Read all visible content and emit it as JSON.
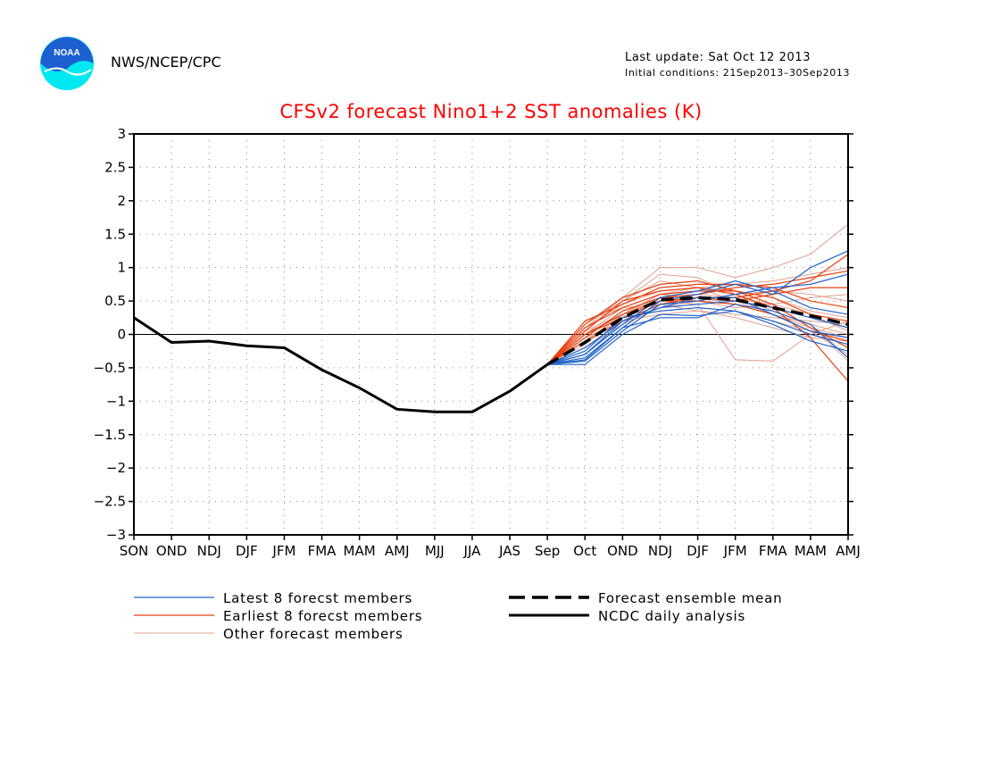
{
  "header": {
    "organization": "NWS/NCEP/CPC",
    "last_update": "Last update: Sat Oct 12 2013",
    "initial_conditions": "Initial conditions: 21Sep2013–30Sep2013",
    "logo_text": "NOAA"
  },
  "colors": {
    "title": "#ff0000",
    "latest_members": "#1f63c9",
    "earliest_members": "#e84010",
    "other_members": "#e0a090",
    "analysis": "#000000"
  },
  "chart_data": {
    "type": "line",
    "title": "CFSv2 forecast Nino1+2 SST anomalies (K)",
    "categories": [
      "SON",
      "OND",
      "NDJ",
      "DJF",
      "JFM",
      "FMA",
      "MAM",
      "AMJ",
      "MJJ",
      "JJA",
      "JAS",
      "Sep",
      "Oct",
      "OND",
      "NDJ",
      "DJF",
      "JFM",
      "FMA",
      "MAM",
      "AMJ"
    ],
    "ylim": [
      -3,
      3
    ],
    "yticks": [
      3,
      2.5,
      2,
      1.5,
      1,
      0.5,
      0,
      -0.5,
      -1,
      -1.5,
      -2,
      -2.5,
      -3
    ],
    "ytick_labels": [
      "3",
      "2.5",
      "2",
      "1.5",
      "1",
      "0.5",
      "0",
      "−0.5",
      "−1",
      "−1.5",
      "−2",
      "−2.5",
      "−3"
    ],
    "grid": true,
    "legend_position": "bottom",
    "legend": [
      {
        "label": "Latest 8 forecst members",
        "style": "latest"
      },
      {
        "label": "Earliest 8 forecst members",
        "style": "earliest"
      },
      {
        "label": "Other forecast members",
        "style": "other"
      },
      {
        "label": "Forecast ensemble mean",
        "style": "mean"
      },
      {
        "label": "NCDC daily analysis",
        "style": "analysis"
      }
    ],
    "analysis": {
      "x_index": [
        0,
        1,
        2,
        3,
        4,
        5,
        6,
        7,
        8,
        9,
        10,
        11
      ],
      "values": [
        0.25,
        -0.12,
        -0.1,
        -0.17,
        -0.2,
        -0.53,
        -0.8,
        -1.12,
        -1.16,
        -1.16,
        -0.85,
        -0.45
      ]
    },
    "ensemble_mean": {
      "x_index": [
        11,
        12,
        13,
        14,
        15,
        16,
        17,
        18,
        19
      ],
      "values": [
        -0.45,
        -0.12,
        0.25,
        0.52,
        0.55,
        0.52,
        0.4,
        0.28,
        0.15
      ]
    },
    "member_x_index": [
      11,
      12,
      13,
      14,
      15,
      16,
      17,
      18,
      19
    ],
    "latest_members": [
      [
        -0.45,
        -0.45,
        0.0,
        0.3,
        0.28,
        0.35,
        0.2,
        0.0,
        -0.15
      ],
      [
        -0.45,
        -0.4,
        0.05,
        0.45,
        0.5,
        0.6,
        0.7,
        0.75,
        0.9
      ],
      [
        -0.45,
        -0.35,
        0.1,
        0.5,
        0.6,
        0.75,
        0.6,
        1.0,
        1.25
      ],
      [
        -0.45,
        -0.3,
        0.15,
        0.55,
        0.65,
        0.8,
        0.65,
        0.4,
        0.3
      ],
      [
        -0.45,
        -0.3,
        0.2,
        0.4,
        0.55,
        0.55,
        0.3,
        0.05,
        -0.05
      ],
      [
        -0.45,
        -0.2,
        0.2,
        0.4,
        0.45,
        0.5,
        0.4,
        0.25,
        0.1
      ],
      [
        -0.45,
        -0.25,
        0.25,
        0.35,
        0.4,
        0.35,
        0.15,
        -0.1,
        -0.25
      ],
      [
        -0.45,
        -0.38,
        0.1,
        0.25,
        0.25,
        0.45,
        0.35,
        0.15,
        -0.35
      ]
    ],
    "earliest_members": [
      [
        -0.45,
        0.2,
        0.45,
        0.7,
        0.75,
        0.75,
        0.7,
        0.5,
        0.4
      ],
      [
        -0.45,
        0.1,
        0.4,
        0.6,
        0.65,
        0.65,
        0.55,
        0.3,
        0.2
      ],
      [
        -0.45,
        -0.05,
        0.35,
        0.55,
        0.6,
        0.7,
        0.75,
        0.85,
        0.95
      ],
      [
        -0.45,
        0.0,
        0.3,
        0.5,
        0.5,
        0.45,
        0.3,
        0.05,
        -0.1
      ],
      [
        -0.45,
        0.05,
        0.5,
        0.65,
        0.7,
        0.6,
        0.4,
        -0.05,
        -0.7
      ],
      [
        -0.45,
        -0.1,
        0.2,
        0.45,
        0.55,
        0.5,
        0.6,
        0.7,
        0.7
      ],
      [
        -0.45,
        0.15,
        0.55,
        0.75,
        0.8,
        0.65,
        0.45,
        0.1,
        -0.2
      ],
      [
        -0.45,
        0.0,
        0.25,
        0.5,
        0.55,
        0.55,
        0.65,
        0.8,
        1.2
      ]
    ],
    "other_members": [
      [
        -0.45,
        0.05,
        0.3,
        0.6,
        0.7,
        0.75,
        0.8,
        0.9,
        1.0
      ],
      [
        -0.45,
        0.1,
        0.55,
        1.0,
        1.0,
        0.85,
        1.0,
        1.2,
        1.65
      ],
      [
        -0.45,
        -0.1,
        0.3,
        0.55,
        0.6,
        0.55,
        0.45,
        0.3,
        0.05
      ],
      [
        -0.45,
        -0.05,
        0.35,
        0.5,
        0.45,
        -0.38,
        -0.4,
        0.0,
        0.2
      ],
      [
        -0.45,
        0.2,
        0.4,
        0.45,
        0.35,
        0.25,
        0.1,
        -0.05,
        -0.1
      ],
      [
        -0.45,
        0.0,
        0.25,
        0.35,
        0.4,
        0.35,
        0.2,
        0.05,
        -0.3
      ],
      [
        -0.45,
        -0.15,
        0.3,
        0.6,
        0.55,
        0.45,
        0.3,
        0.15,
        0.0
      ],
      [
        -0.45,
        0.1,
        0.45,
        0.65,
        0.7,
        0.65,
        0.55,
        0.35,
        0.25
      ],
      [
        -0.45,
        -0.2,
        0.15,
        0.4,
        0.5,
        0.6,
        0.65,
        0.6,
        0.5
      ],
      [
        -0.45,
        0.05,
        0.5,
        0.8,
        0.7,
        0.5,
        0.3,
        0.1,
        -0.05
      ],
      [
        -0.45,
        -0.05,
        0.2,
        0.3,
        0.35,
        0.3,
        0.25,
        0.2,
        0.15
      ],
      [
        -0.45,
        0.15,
        0.5,
        0.9,
        0.85,
        0.6,
        0.35,
        0.15,
        -0.4
      ],
      [
        -0.45,
        0.0,
        0.4,
        0.6,
        0.5,
        0.4,
        0.45,
        0.55,
        0.6
      ]
    ]
  }
}
